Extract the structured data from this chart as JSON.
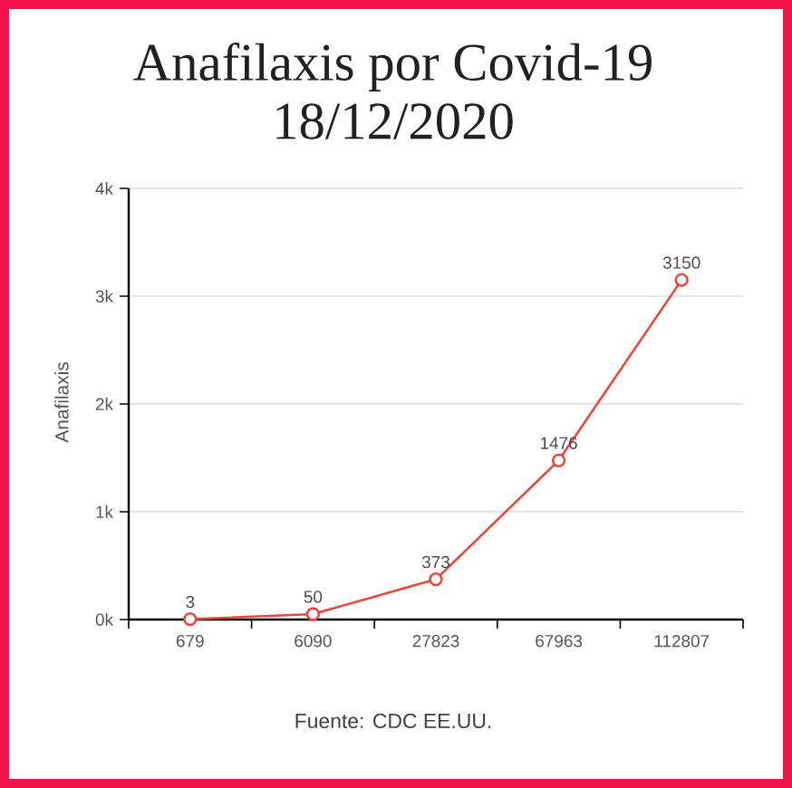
{
  "chart_data": {
    "type": "line",
    "title": "Anafilaxis por Covid-19",
    "subtitle": "18/12/2020",
    "ylabel": "Anafilaxis",
    "categories": [
      "679",
      "6090",
      "27823",
      "67963",
      "112807"
    ],
    "values": [
      3,
      50,
      373,
      1476,
      3150
    ],
    "color": "#e8473a",
    "ylim": [
      0,
      4000
    ],
    "yticks": [
      {
        "value": 0,
        "label": "0k"
      },
      {
        "value": 1000,
        "label": "1k"
      },
      {
        "value": 2000,
        "label": "2k"
      },
      {
        "value": 3000,
        "label": "3k"
      },
      {
        "value": 4000,
        "label": "4k"
      }
    ],
    "grid": "y",
    "marker": "circle",
    "line_style": "solid",
    "data_labels": true,
    "annotations": [
      "Fuente: CDC EE.UU."
    ]
  }
}
